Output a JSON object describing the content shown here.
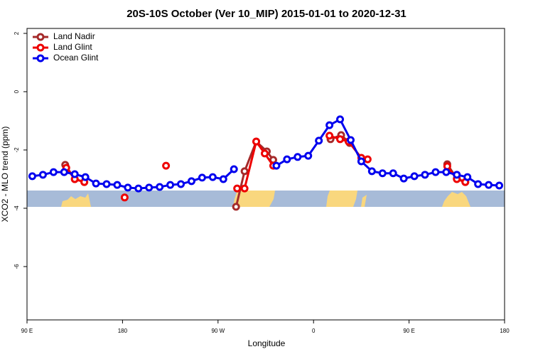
{
  "chart_data": {
    "type": "line",
    "title": "20S-10S October (Ver 10_MIP)   2015-01-01 to 2020-12-31",
    "x_label": "Longitude",
    "y_label": "XCO2 - MLO trend (ppm)",
    "xlim": [
      90,
      540
    ],
    "ylim": [
      -7.83,
      2.17
    ],
    "xticks": [
      {
        "value": 90,
        "label": "90 E"
      },
      180,
      {
        "value": 270,
        "label": "90 W"
      },
      {
        "value": 360,
        "label": "0"
      },
      {
        "value": 450,
        "label": "90 E"
      },
      {
        "value": 540,
        "label": "180"
      }
    ],
    "yticks": [
      2,
      0,
      -2,
      -4,
      -6
    ],
    "legend": "top-left",
    "series": [
      {
        "name": "Land Nadir",
        "color": "#a52a2a",
        "x": [
          126,
          135,
          144,
          null,
          287,
          295,
          306,
          316,
          322,
          null,
          376,
          386,
          394,
          null,
          486,
          495,
          503
        ],
        "values": [
          -2.51,
          -3.0,
          -3.1,
          null,
          -3.95,
          -2.73,
          -1.71,
          -2.05,
          -2.34,
          null,
          -1.63,
          -1.49,
          -1.76,
          null,
          -2.49,
          -2.98,
          -3.1
        ]
      },
      {
        "name": "Land Glint",
        "color": "#ee0000",
        "x": [
          127,
          135,
          144,
          null,
          182,
          null,
          221,
          null,
          288,
          295,
          306,
          314,
          322,
          null,
          375,
          385,
          393,
          405,
          411,
          null,
          486,
          495,
          503
        ],
        "values": [
          -2.61,
          -3.0,
          -3.1,
          null,
          -3.63,
          null,
          -2.54,
          null,
          -3.32,
          -3.32,
          -1.71,
          -2.12,
          -2.54,
          null,
          -1.51,
          -1.63,
          -1.71,
          -2.27,
          -2.32,
          null,
          -2.56,
          -3.0,
          -3.1
        ]
      },
      {
        "name": "Ocean Glint",
        "color": "#0000ee",
        "x": [
          95,
          105,
          115,
          125,
          135,
          145,
          155,
          165,
          175,
          185,
          195,
          205,
          215,
          225,
          235,
          245,
          255,
          265,
          275,
          285,
          295,
          305,
          315,
          325,
          335,
          345,
          355,
          365,
          375,
          385,
          395,
          405,
          415,
          425,
          435,
          445,
          455,
          465,
          475,
          485,
          495,
          505,
          515,
          525,
          535
        ],
        "values": [
          -2.9,
          -2.85,
          -2.76,
          -2.76,
          -2.83,
          -2.93,
          -3.15,
          -3.17,
          -3.2,
          -3.29,
          -3.32,
          -3.29,
          -3.27,
          -3.2,
          -3.17,
          -3.07,
          -2.95,
          -2.93,
          -3.0,
          -2.66,
          null,
          null,
          null,
          -2.54,
          -2.32,
          -2.24,
          -2.2,
          -1.68,
          -1.15,
          -0.95,
          -1.66,
          -2.39,
          -2.73,
          -2.8,
          -2.8,
          -2.98,
          -2.9,
          -2.85,
          -2.76,
          -2.76,
          -2.85,
          -2.93,
          -3.17,
          -3.2,
          -3.22
        ]
      }
    ]
  }
}
